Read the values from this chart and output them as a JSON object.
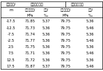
{
  "col0_header": [
    "检测位置/",
    "m"
  ],
  "left_group_header": "左底边底钢束",
  "right_group_header": "右底边底钢束",
  "sub_headers": [
    "预应力损失/",
    "损失/"
  ],
  "unit_headers": [
    "MPa",
    "‰"
  ],
  "col0": [
    "-17.5",
    "-12.5",
    "-7.5",
    "-2.5",
    "2.5",
    "7.5",
    "12.5",
    "17.5"
  ],
  "col1": [
    "71.85",
    "71.73",
    "71.74",
    "71.77",
    "71.75",
    "71.71",
    "71.72",
    "71.87"
  ],
  "col2": [
    "5.37",
    "5.36",
    "5.36",
    "5.36",
    "5.36",
    "5.36",
    "5.36",
    "5.37"
  ],
  "col3": [
    "79.75",
    "79.75",
    "79.75",
    "79.75",
    "79.75",
    "79.75",
    "79.75",
    "79.75"
  ],
  "col4": [
    "5.36",
    "5.46",
    "5.36",
    "5.46",
    "5.36",
    "5.46",
    "5.36",
    "5.46"
  ],
  "background_color": "#ffffff",
  "line_color": "#000000",
  "text_color": "#000000",
  "font_size": 3.8,
  "header_font_size": 3.8
}
